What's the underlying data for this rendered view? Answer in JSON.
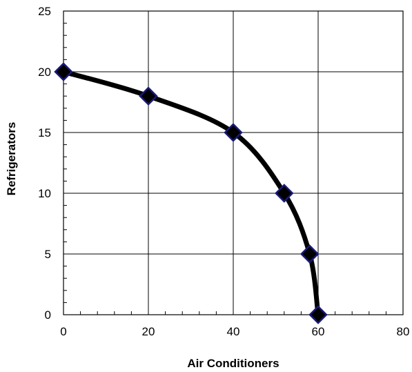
{
  "chart_data": {
    "type": "line",
    "title": "",
    "xlabel": "Air Conditioners",
    "ylabel": "Refrigerators",
    "xlim": [
      0,
      80
    ],
    "ylim": [
      0,
      25
    ],
    "xticks": [
      0,
      20,
      40,
      60,
      80
    ],
    "yticks": [
      0,
      5,
      10,
      15,
      20,
      25
    ],
    "grid": true,
    "legend": "none",
    "series": [
      {
        "points": [
          {
            "x": 0,
            "y": 20
          },
          {
            "x": 20,
            "y": 18
          },
          {
            "x": 40,
            "y": 15
          },
          {
            "x": 52,
            "y": 10
          },
          {
            "x": 58,
            "y": 5
          },
          {
            "x": 60,
            "y": 0
          }
        ],
        "line_color": "#000000",
        "marker": "diamond",
        "marker_fill": "#000000",
        "marker_edge": "#1a1a7a"
      }
    ]
  }
}
